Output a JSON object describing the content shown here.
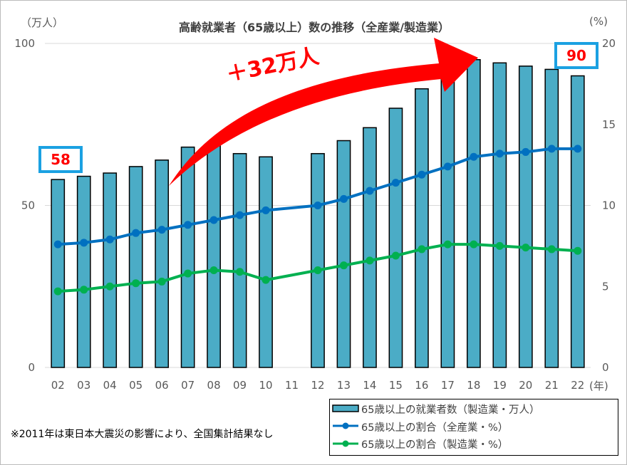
{
  "chart_data": {
    "type": "bar+line",
    "title": "高齢就業者（65歳以上）数の推移（全産業/製造業）",
    "left_unit": "（万人）",
    "right_unit": "(%)",
    "x_unit": "(年)",
    "categories": [
      "02",
      "03",
      "04",
      "05",
      "06",
      "07",
      "08",
      "09",
      "10",
      "11",
      "12",
      "13",
      "14",
      "15",
      "16",
      "17",
      "18",
      "19",
      "20",
      "21",
      "22"
    ],
    "left_axis": {
      "min": 0,
      "max": 100,
      "ticks": [
        "0",
        "50",
        "100"
      ]
    },
    "right_axis": {
      "min": 0,
      "max": 20,
      "ticks": [
        "0",
        "5",
        "10",
        "15",
        "20"
      ]
    },
    "grid": "horizontal",
    "legend_position": "bottom-right",
    "series": [
      {
        "name": "65歳以上の就業者数（製造業・万人）",
        "kind": "bar",
        "axis": "left",
        "color": "#4bacc6",
        "values": [
          58,
          59,
          60,
          62,
          64,
          68,
          69,
          66,
          65,
          null,
          66,
          70,
          74,
          80,
          86,
          90,
          95,
          94,
          93,
          92,
          90
        ]
      },
      {
        "name": "65歳以上の割合（全産業・%）",
        "kind": "line",
        "axis": "right",
        "color": "#0070c0",
        "values": [
          7.6,
          7.7,
          7.9,
          8.3,
          8.5,
          8.8,
          9.1,
          9.4,
          9.7,
          null,
          10.0,
          10.4,
          10.9,
          11.4,
          11.9,
          12.4,
          13.0,
          13.2,
          13.3,
          13.5,
          13.5
        ]
      },
      {
        "name": "65歳以上の割合（製造業・%）",
        "kind": "line",
        "axis": "right",
        "color": "#00b050",
        "values": [
          4.7,
          4.8,
          5.0,
          5.2,
          5.3,
          5.8,
          6.0,
          5.9,
          5.4,
          null,
          6.0,
          6.3,
          6.6,
          6.9,
          7.3,
          7.6,
          7.6,
          7.5,
          7.4,
          7.3,
          7.2
        ]
      }
    ],
    "annotations": {
      "start_value": "58",
      "end_value": "90",
      "arrow_label": "＋32万人"
    },
    "note": "※2011年は東日本大震災の影響により、全国集計結果なし"
  }
}
